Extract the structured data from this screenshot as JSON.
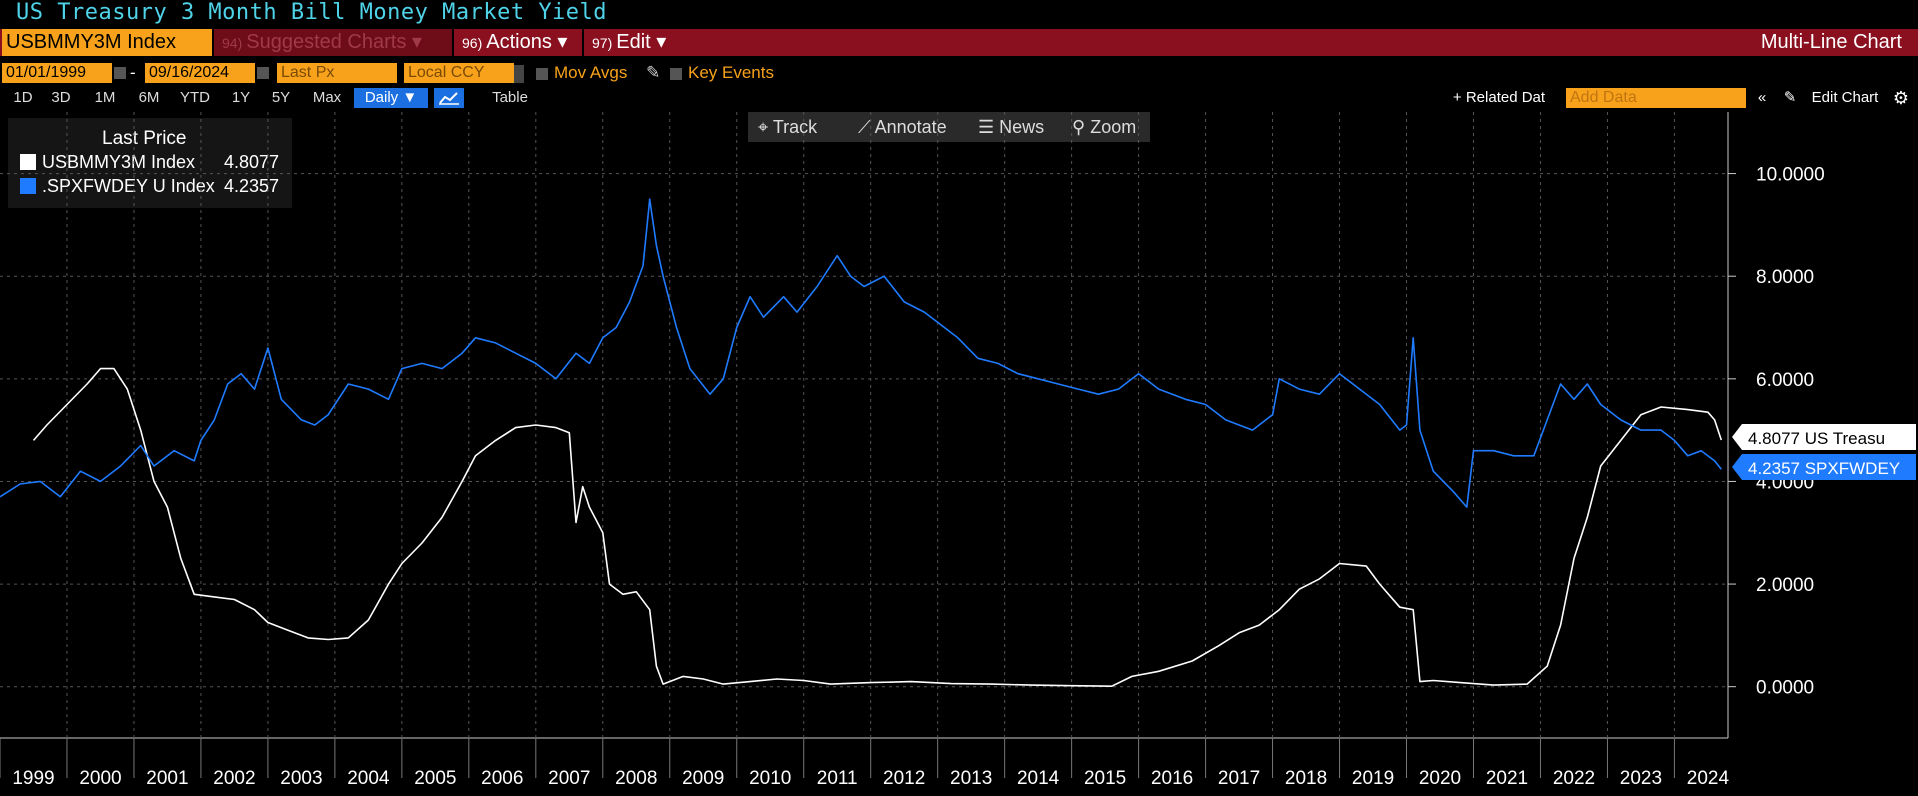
{
  "title": "US Treasury 3 Month Bill Money Market Yield",
  "toolbar": {
    "ticker": "USBMMY3M Index",
    "suggested": {
      "num": "94)",
      "label": "Suggested Charts"
    },
    "actions": {
      "num": "96)",
      "label": "Actions"
    },
    "edit": {
      "num": "97)",
      "label": "Edit"
    },
    "chart_type": "Multi-Line Chart"
  },
  "range": {
    "start": "01/01/1999",
    "end": "09/16/2024",
    "field": "Last Px",
    "currency": "Local CCY",
    "mov_avgs": "Mov Avgs",
    "key_events": "Key Events"
  },
  "periods": [
    "1D",
    "3D",
    "1M",
    "6M",
    "YTD",
    "1Y",
    "5Y",
    "Max"
  ],
  "frequency": "Daily ▼",
  "table_label": "Table",
  "related_data": "+ Related Dat",
  "add_data_placeholder": "Add Data",
  "edit_chart": "Edit Chart",
  "tools": {
    "track": "Track",
    "annotate": "Annotate",
    "news": "News",
    "zoom": "Zoom"
  },
  "legend": {
    "header": "Last Price",
    "items": [
      {
        "name": "USBMMY3M Index",
        "value": "4.8077",
        "color": "#ffffff"
      },
      {
        "name": ".SPXFWDEY U Index",
        "value": "4.2357",
        "color": "#1f7bff"
      }
    ]
  },
  "last_labels": [
    {
      "text": "4.8077 US Treasu",
      "value": 4.8077,
      "bg": "#ffffff",
      "fg": "#000000"
    },
    {
      "text": "4.2357 SPXFWDEY",
      "value": 4.2357,
      "bg": "#1f7bff",
      "fg": "#ffffff"
    }
  ],
  "chart_data": {
    "type": "line",
    "x_unit": "year",
    "xlim": [
      1999.0,
      2024.8
    ],
    "ylim": [
      -1.0,
      11.2
    ],
    "yticks": [
      0,
      2,
      4,
      6,
      8,
      10
    ],
    "ytick_labels": [
      "0.0000",
      "2.0000",
      "4.0000",
      "6.0000",
      "8.0000",
      "10.0000"
    ],
    "xticks": [
      "1999",
      "2000",
      "2001",
      "2002",
      "2003",
      "2004",
      "2005",
      "2006",
      "2007",
      "2008",
      "2009",
      "2010",
      "2011",
      "2012",
      "2013",
      "2014",
      "2015",
      "2016",
      "2017",
      "2018",
      "2019",
      "2020",
      "2021",
      "2022",
      "2023",
      "2024"
    ],
    "grid": true,
    "series": [
      {
        "name": "USBMMY3M Index",
        "color": "#ffffff",
        "points": [
          [
            1999.5,
            4.8
          ],
          [
            1999.7,
            5.1
          ],
          [
            2000.0,
            5.5
          ],
          [
            2000.3,
            5.9
          ],
          [
            2000.5,
            6.2
          ],
          [
            2000.7,
            6.2
          ],
          [
            2000.9,
            5.8
          ],
          [
            2001.1,
            5.0
          ],
          [
            2001.3,
            4.0
          ],
          [
            2001.5,
            3.5
          ],
          [
            2001.7,
            2.5
          ],
          [
            2001.9,
            1.8
          ],
          [
            2002.2,
            1.75
          ],
          [
            2002.5,
            1.7
          ],
          [
            2002.8,
            1.5
          ],
          [
            2003.0,
            1.25
          ],
          [
            2003.3,
            1.1
          ],
          [
            2003.6,
            0.95
          ],
          [
            2003.9,
            0.92
          ],
          [
            2004.2,
            0.95
          ],
          [
            2004.5,
            1.3
          ],
          [
            2004.8,
            2.0
          ],
          [
            2005.0,
            2.4
          ],
          [
            2005.3,
            2.8
          ],
          [
            2005.6,
            3.3
          ],
          [
            2005.9,
            4.0
          ],
          [
            2006.1,
            4.5
          ],
          [
            2006.4,
            4.8
          ],
          [
            2006.7,
            5.05
          ],
          [
            2007.0,
            5.1
          ],
          [
            2007.3,
            5.05
          ],
          [
            2007.5,
            4.95
          ],
          [
            2007.6,
            3.2
          ],
          [
            2007.7,
            3.9
          ],
          [
            2007.8,
            3.5
          ],
          [
            2008.0,
            3.0
          ],
          [
            2008.1,
            2.0
          ],
          [
            2008.3,
            1.8
          ],
          [
            2008.5,
            1.85
          ],
          [
            2008.7,
            1.5
          ],
          [
            2008.8,
            0.4
          ],
          [
            2008.9,
            0.05
          ],
          [
            2009.2,
            0.2
          ],
          [
            2009.5,
            0.15
          ],
          [
            2009.8,
            0.05
          ],
          [
            2010.2,
            0.1
          ],
          [
            2010.6,
            0.15
          ],
          [
            2011.0,
            0.12
          ],
          [
            2011.4,
            0.05
          ],
          [
            2012.0,
            0.08
          ],
          [
            2012.6,
            0.1
          ],
          [
            2013.2,
            0.06
          ],
          [
            2013.8,
            0.05
          ],
          [
            2014.4,
            0.03
          ],
          [
            2015.0,
            0.02
          ],
          [
            2015.6,
            0.01
          ],
          [
            2015.9,
            0.2
          ],
          [
            2016.3,
            0.3
          ],
          [
            2016.8,
            0.5
          ],
          [
            2017.2,
            0.8
          ],
          [
            2017.5,
            1.05
          ],
          [
            2017.8,
            1.2
          ],
          [
            2018.1,
            1.5
          ],
          [
            2018.4,
            1.9
          ],
          [
            2018.7,
            2.1
          ],
          [
            2019.0,
            2.4
          ],
          [
            2019.4,
            2.35
          ],
          [
            2019.6,
            2.0
          ],
          [
            2019.9,
            1.55
          ],
          [
            2020.1,
            1.5
          ],
          [
            2020.2,
            0.1
          ],
          [
            2020.4,
            0.12
          ],
          [
            2020.8,
            0.08
          ],
          [
            2021.3,
            0.03
          ],
          [
            2021.8,
            0.05
          ],
          [
            2022.1,
            0.4
          ],
          [
            2022.3,
            1.2
          ],
          [
            2022.5,
            2.5
          ],
          [
            2022.7,
            3.3
          ],
          [
            2022.9,
            4.3
          ],
          [
            2023.2,
            4.8
          ],
          [
            2023.5,
            5.3
          ],
          [
            2023.8,
            5.45
          ],
          [
            2024.2,
            5.4
          ],
          [
            2024.5,
            5.35
          ],
          [
            2024.6,
            5.2
          ],
          [
            2024.7,
            4.8077
          ]
        ]
      },
      {
        "name": ".SPXFWDEY U Index",
        "color": "#1f7bff",
        "points": [
          [
            1999.0,
            3.7
          ],
          [
            1999.3,
            3.95
          ],
          [
            1999.6,
            4.0
          ],
          [
            1999.9,
            3.7
          ],
          [
            2000.2,
            4.2
          ],
          [
            2000.5,
            4.0
          ],
          [
            2000.8,
            4.3
          ],
          [
            2001.1,
            4.7
          ],
          [
            2001.3,
            4.3
          ],
          [
            2001.6,
            4.6
          ],
          [
            2001.9,
            4.4
          ],
          [
            2002.0,
            4.8
          ],
          [
            2002.2,
            5.2
          ],
          [
            2002.4,
            5.9
          ],
          [
            2002.6,
            6.1
          ],
          [
            2002.8,
            5.8
          ],
          [
            2003.0,
            6.6
          ],
          [
            2003.2,
            5.6
          ],
          [
            2003.5,
            5.2
          ],
          [
            2003.7,
            5.1
          ],
          [
            2003.9,
            5.3
          ],
          [
            2004.2,
            5.9
          ],
          [
            2004.5,
            5.8
          ],
          [
            2004.8,
            5.6
          ],
          [
            2005.0,
            6.2
          ],
          [
            2005.3,
            6.3
          ],
          [
            2005.6,
            6.2
          ],
          [
            2005.9,
            6.5
          ],
          [
            2006.1,
            6.8
          ],
          [
            2006.4,
            6.7
          ],
          [
            2006.7,
            6.5
          ],
          [
            2007.0,
            6.3
          ],
          [
            2007.3,
            6.0
          ],
          [
            2007.6,
            6.5
          ],
          [
            2007.8,
            6.3
          ],
          [
            2008.0,
            6.8
          ],
          [
            2008.2,
            7.0
          ],
          [
            2008.4,
            7.5
          ],
          [
            2008.6,
            8.2
          ],
          [
            2008.7,
            9.5
          ],
          [
            2008.8,
            8.6
          ],
          [
            2008.9,
            8.0
          ],
          [
            2009.1,
            7.0
          ],
          [
            2009.3,
            6.2
          ],
          [
            2009.6,
            5.7
          ],
          [
            2009.8,
            6.0
          ],
          [
            2010.0,
            7.0
          ],
          [
            2010.2,
            7.6
          ],
          [
            2010.4,
            7.2
          ],
          [
            2010.7,
            7.6
          ],
          [
            2010.9,
            7.3
          ],
          [
            2011.2,
            7.8
          ],
          [
            2011.5,
            8.4
          ],
          [
            2011.7,
            8.0
          ],
          [
            2011.9,
            7.8
          ],
          [
            2012.2,
            8.0
          ],
          [
            2012.5,
            7.5
          ],
          [
            2012.8,
            7.3
          ],
          [
            2013.0,
            7.1
          ],
          [
            2013.3,
            6.8
          ],
          [
            2013.6,
            6.4
          ],
          [
            2013.9,
            6.3
          ],
          [
            2014.2,
            6.1
          ],
          [
            2014.5,
            6.0
          ],
          [
            2014.8,
            5.9
          ],
          [
            2015.1,
            5.8
          ],
          [
            2015.4,
            5.7
          ],
          [
            2015.7,
            5.8
          ],
          [
            2016.0,
            6.1
          ],
          [
            2016.3,
            5.8
          ],
          [
            2016.7,
            5.6
          ],
          [
            2017.0,
            5.5
          ],
          [
            2017.3,
            5.2
          ],
          [
            2017.7,
            5.0
          ],
          [
            2018.0,
            5.3
          ],
          [
            2018.1,
            6.0
          ],
          [
            2018.4,
            5.8
          ],
          [
            2018.7,
            5.7
          ],
          [
            2019.0,
            6.1
          ],
          [
            2019.3,
            5.8
          ],
          [
            2019.6,
            5.5
          ],
          [
            2019.9,
            5.0
          ],
          [
            2020.0,
            5.1
          ],
          [
            2020.1,
            6.8
          ],
          [
            2020.2,
            5.0
          ],
          [
            2020.4,
            4.2
          ],
          [
            2020.7,
            3.8
          ],
          [
            2020.9,
            3.5
          ],
          [
            2021.0,
            4.6
          ],
          [
            2021.3,
            4.6
          ],
          [
            2021.6,
            4.5
          ],
          [
            2021.9,
            4.5
          ],
          [
            2022.1,
            5.2
          ],
          [
            2022.3,
            5.9
          ],
          [
            2022.5,
            5.6
          ],
          [
            2022.7,
            5.9
          ],
          [
            2022.9,
            5.5
          ],
          [
            2023.2,
            5.2
          ],
          [
            2023.5,
            5.0
          ],
          [
            2023.8,
            5.0
          ],
          [
            2024.0,
            4.8
          ],
          [
            2024.2,
            4.5
          ],
          [
            2024.4,
            4.6
          ],
          [
            2024.6,
            4.4
          ],
          [
            2024.7,
            4.2357
          ]
        ]
      }
    ]
  }
}
